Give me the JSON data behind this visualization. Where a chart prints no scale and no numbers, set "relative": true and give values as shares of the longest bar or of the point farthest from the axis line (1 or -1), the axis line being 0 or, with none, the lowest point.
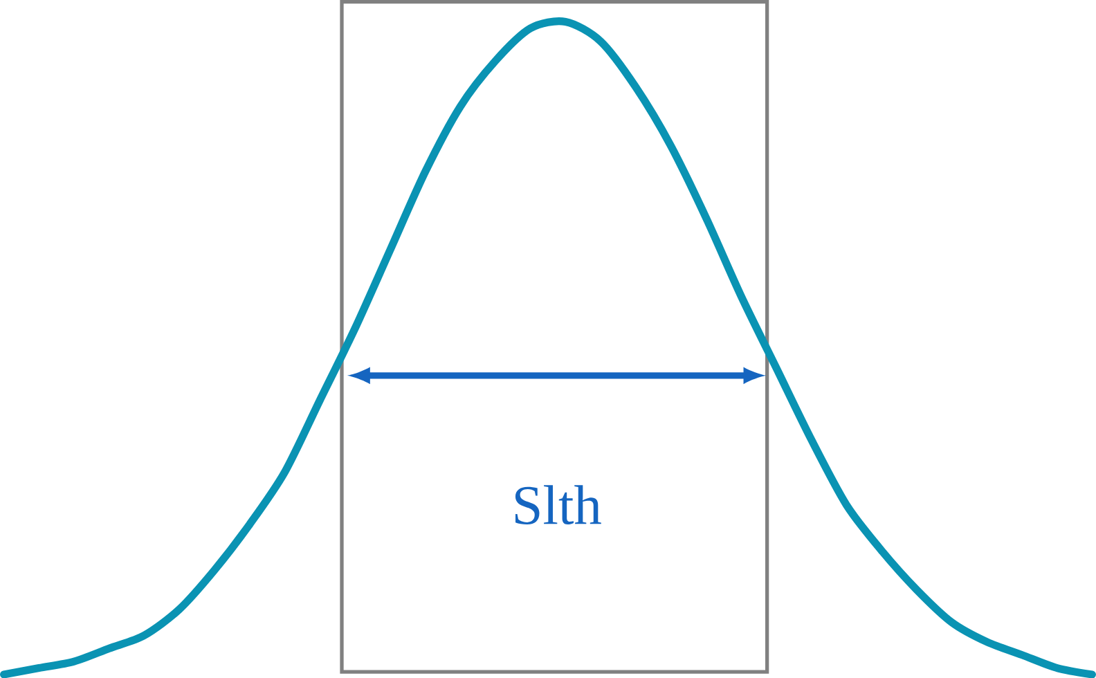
{
  "chart_data": {
    "type": "line",
    "relative": true,
    "color": "#0a93b3",
    "marker": "none",
    "line_style": "solid",
    "categories": [
      null,
      null,
      null,
      null,
      null,
      null,
      null,
      null,
      null,
      null,
      null,
      null,
      null,
      null,
      null,
      null,
      null,
      null,
      null,
      null,
      null,
      null,
      null,
      null,
      null,
      null,
      null,
      null,
      null,
      null,
      null,
      null
    ],
    "values": [
      0,
      0.01,
      0.02,
      0.04,
      0.06,
      0.1,
      0.16,
      0.23,
      0.31,
      0.42,
      0.53,
      0.65,
      0.77,
      0.87,
      0.94,
      0.99,
      1,
      0.97,
      0.9,
      0.81,
      0.7,
      0.58,
      0.47,
      0.36,
      0.26,
      0.19,
      0.13,
      0.08,
      0.05,
      0.03,
      0.01,
      0
    ],
    "annotations": [
      "Slth"
    ]
  }
}
